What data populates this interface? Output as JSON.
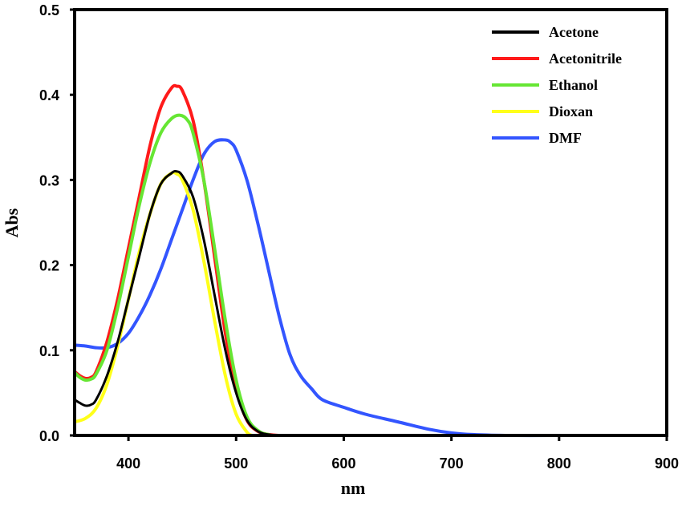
{
  "chart_data": {
    "type": "line",
    "xlabel": "nm",
    "ylabel": "Abs",
    "xlim": [
      350,
      900
    ],
    "ylim": [
      0,
      0.5
    ],
    "xticks": [
      "400",
      "500",
      "600",
      "700",
      "800",
      "900"
    ],
    "yticks": [
      "0.0",
      "0.1",
      "0.2",
      "0.3",
      "0.4",
      "0.5"
    ],
    "grid": false,
    "legend_position": "top-right",
    "series": [
      {
        "name": "Acetone",
        "color": "#000000",
        "x": [
          350,
          355,
          360,
          365,
          370,
          380,
          390,
          400,
          410,
          420,
          430,
          440,
          445,
          450,
          460,
          470,
          480,
          490,
          500,
          510,
          520,
          530,
          540
        ],
        "y": [
          0.042,
          0.038,
          0.035,
          0.036,
          0.042,
          0.07,
          0.11,
          0.16,
          0.21,
          0.26,
          0.295,
          0.308,
          0.31,
          0.305,
          0.28,
          0.23,
          0.165,
          0.1,
          0.05,
          0.018,
          0.005,
          0.001,
          0.0
        ]
      },
      {
        "name": "Acetonitrile",
        "color": "#ff1a1a",
        "x": [
          350,
          355,
          360,
          365,
          370,
          380,
          390,
          400,
          410,
          420,
          430,
          440,
          445,
          450,
          460,
          470,
          480,
          490,
          500,
          510,
          520,
          530,
          540
        ],
        "y": [
          0.075,
          0.07,
          0.067,
          0.068,
          0.075,
          0.11,
          0.16,
          0.22,
          0.28,
          0.34,
          0.385,
          0.408,
          0.41,
          0.405,
          0.37,
          0.3,
          0.21,
          0.12,
          0.055,
          0.018,
          0.005,
          0.001,
          0.0
        ]
      },
      {
        "name": "Ethanol",
        "color": "#66e633",
        "x": [
          350,
          355,
          360,
          365,
          370,
          380,
          390,
          400,
          410,
          420,
          430,
          440,
          448,
          455,
          460,
          470,
          480,
          490,
          500,
          510,
          520,
          530,
          545,
          680,
          800
        ],
        "y": [
          0.074,
          0.068,
          0.065,
          0.066,
          0.072,
          0.1,
          0.15,
          0.21,
          0.27,
          0.32,
          0.355,
          0.372,
          0.376,
          0.37,
          0.355,
          0.3,
          0.22,
          0.135,
          0.065,
          0.022,
          0.006,
          0.001,
          0.0,
          0.0,
          0.0
        ]
      },
      {
        "name": "Dioxan",
        "color": "#ffff1a",
        "x": [
          350,
          360,
          370,
          380,
          390,
          400,
          410,
          420,
          430,
          440,
          445,
          450,
          460,
          470,
          480,
          490,
          500,
          510,
          515
        ],
        "y": [
          0.016,
          0.02,
          0.032,
          0.06,
          0.105,
          0.16,
          0.215,
          0.26,
          0.295,
          0.308,
          0.307,
          0.3,
          0.265,
          0.205,
          0.135,
          0.07,
          0.025,
          0.004,
          0.0
        ]
      },
      {
        "name": " DMF",
        "color": "#3355ff",
        "x": [
          350,
          360,
          370,
          380,
          390,
          400,
          410,
          420,
          430,
          440,
          450,
          460,
          470,
          480,
          490,
          495,
          500,
          510,
          520,
          530,
          540,
          550,
          560,
          570,
          580,
          600,
          620,
          650,
          680,
          700,
          720,
          750,
          800
        ],
        "y": [
          0.106,
          0.105,
          0.103,
          0.103,
          0.108,
          0.12,
          0.14,
          0.165,
          0.195,
          0.23,
          0.265,
          0.3,
          0.33,
          0.345,
          0.347,
          0.344,
          0.335,
          0.3,
          0.25,
          0.195,
          0.14,
          0.095,
          0.07,
          0.055,
          0.042,
          0.033,
          0.025,
          0.016,
          0.007,
          0.003,
          0.001,
          0.0,
          0.0
        ]
      }
    ]
  }
}
